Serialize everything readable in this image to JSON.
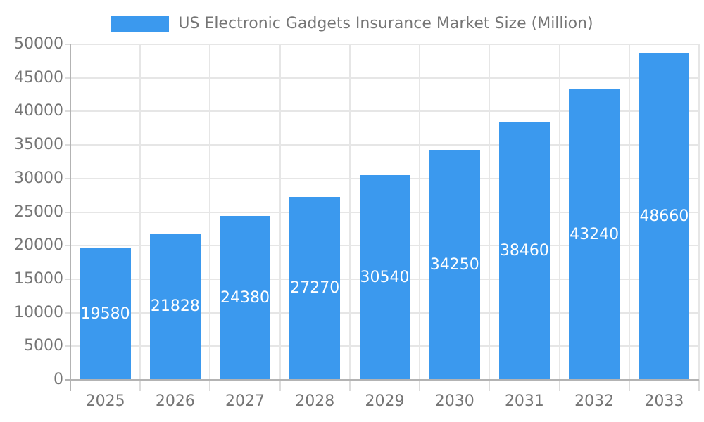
{
  "chart_data": {
    "type": "bar",
    "categories": [
      "2025",
      "2026",
      "2027",
      "2028",
      "2029",
      "2030",
      "2031",
      "2032",
      "2033"
    ],
    "series": [
      {
        "name": "US Electronic Gadgets Insurance Market Size (Million)",
        "values": [
          19580,
          21828,
          24380,
          27270,
          30540,
          34250,
          38460,
          43240,
          48660
        ]
      }
    ],
    "xlabel": "",
    "ylabel": "",
    "ylim": [
      0,
      50000
    ],
    "ytick_step": 5000,
    "legend_position": "top",
    "grid": true,
    "show_value_labels": true
  },
  "style": {
    "bar_color": "#3B99EE",
    "grid_color": "#E6E6E6",
    "axis_color": "#B3B3B3",
    "tick_color": "#DCDCDC",
    "label_color": "#757575",
    "value_label_color": "#FFFFFF",
    "background": "#FFFFFF"
  }
}
